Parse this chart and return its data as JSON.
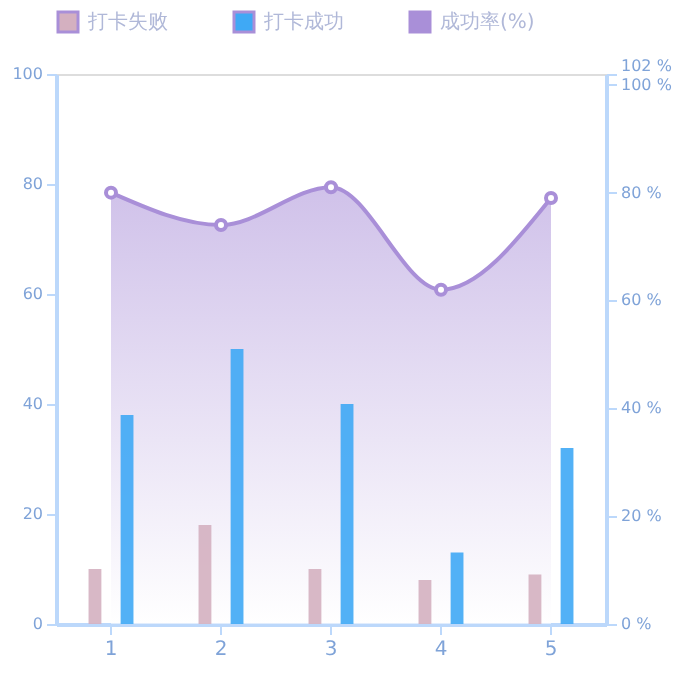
{
  "chart_data": {
    "type": "bar",
    "categories": [
      "1",
      "2",
      "3",
      "4",
      "5"
    ],
    "series": [
      {
        "name": "打卡失败",
        "color": "#d4b0c0",
        "values": [
          10,
          18,
          10,
          8,
          9
        ]
      },
      {
        "name": "打卡成功",
        "color": "#3fa9f5",
        "values": [
          38,
          50,
          40,
          13,
          32
        ]
      },
      {
        "name": "成功率(%)",
        "type": "area",
        "axis": "y2",
        "color": "#a98fd8",
        "values": [
          80,
          74,
          81,
          62,
          79
        ]
      }
    ],
    "ylim": [
      0,
      100
    ],
    "yticks": [
      0,
      20,
      40,
      60,
      80,
      100
    ],
    "y2lim": [
      0,
      102
    ],
    "y2ticks": [
      {
        "value": 0,
        "label": "0 %"
      },
      {
        "value": 20,
        "label": "20 %"
      },
      {
        "value": 40,
        "label": "40 %"
      },
      {
        "value": 60,
        "label": "60 %"
      },
      {
        "value": 80,
        "label": "80 %"
      },
      {
        "value": 100,
        "label": "100 %"
      },
      {
        "value": 102,
        "label": "102 %"
      }
    ],
    "grid": false,
    "legend": "top",
    "marker": "circle",
    "line_style": "solid"
  }
}
